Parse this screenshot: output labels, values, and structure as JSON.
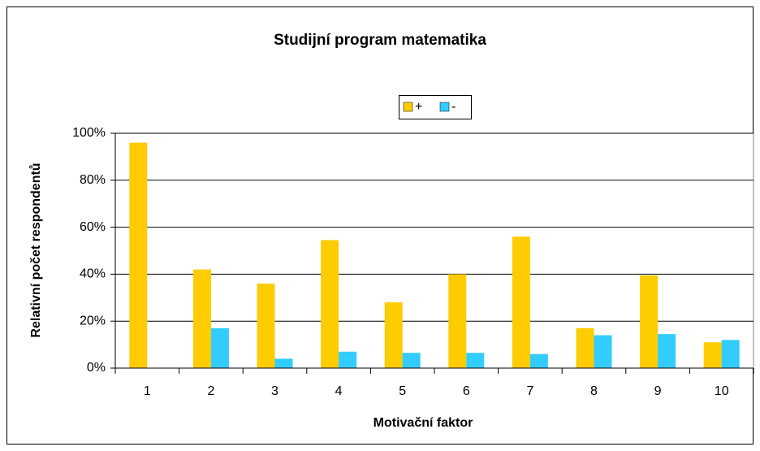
{
  "chart_data": {
    "type": "bar",
    "title": "Studijní program matematika",
    "x_label": "Motivační faktor",
    "y_label": "Relativní počet respondentů",
    "categories": [
      "1",
      "2",
      "3",
      "4",
      "5",
      "6",
      "7",
      "8",
      "9",
      "10"
    ],
    "series": [
      {
        "name": "+",
        "color": "#ffcc00",
        "values": [
          96,
          42,
          36,
          54.5,
          28,
          40,
          56,
          17,
          39.5,
          11
        ]
      },
      {
        "name": "-",
        "color": "#33ccff",
        "values": [
          0,
          17,
          4,
          7,
          6.5,
          6.5,
          6,
          14,
          14.5,
          12
        ]
      }
    ],
    "ylim": [
      0,
      100
    ],
    "yticks": [
      {
        "value": 0,
        "label": "0%"
      },
      {
        "value": 20,
        "label": "20%"
      },
      {
        "value": 40,
        "label": "40%"
      },
      {
        "value": 60,
        "label": "60%"
      },
      {
        "value": 80,
        "label": "80%"
      },
      {
        "value": 100,
        "label": "100%"
      }
    ],
    "grid": true,
    "legend": "top"
  }
}
